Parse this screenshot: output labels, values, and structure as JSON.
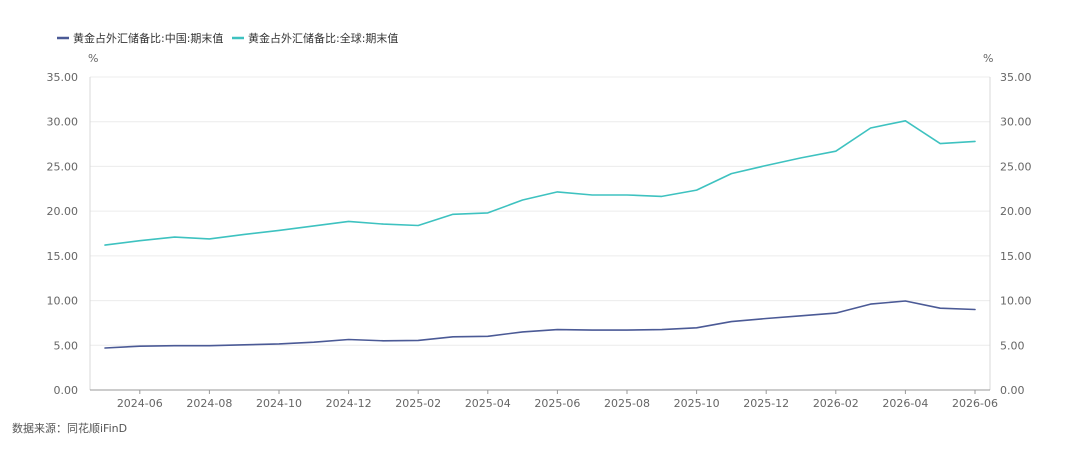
{
  "chart_data": {
    "type": "line",
    "x": [
      "2024-05",
      "2024-06",
      "2024-07",
      "2024-08",
      "2024-09",
      "2024-10",
      "2024-11",
      "2024-12",
      "2025-01",
      "2025-02",
      "2025-03",
      "2025-04",
      "2025-05",
      "2025-06",
      "2025-07",
      "2025-08",
      "2025-09",
      "2025-10",
      "2025-11",
      "2025-12",
      "2026-01",
      "2026-02",
      "2026-03",
      "2026-04",
      "2026-05",
      "2026-06"
    ],
    "x_tick_labels": [
      "2024-06",
      "2024-08",
      "2024-10",
      "2024-12",
      "2025-02",
      "2025-04",
      "2025-06",
      "2025-08",
      "2025-10",
      "2025-12",
      "2026-02",
      "2026-04",
      "2026-06"
    ],
    "series": [
      {
        "name": "黄金占外汇储备比:中国:期末值",
        "color": "#4b5a96",
        "values": [
          4.7,
          4.9,
          4.95,
          4.95,
          5.05,
          5.15,
          5.35,
          5.65,
          5.5,
          5.55,
          5.95,
          6.0,
          6.5,
          6.75,
          6.7,
          6.7,
          6.75,
          6.95,
          7.65,
          8.0,
          8.3,
          8.6,
          9.6,
          9.95,
          9.15,
          9.0
        ]
      },
      {
        "name": "黄金占外汇储备比:全球:期末值",
        "color": "#3ec2c0",
        "values": [
          16.2,
          16.7,
          17.1,
          16.9,
          17.4,
          17.85,
          18.35,
          18.85,
          18.55,
          18.4,
          19.65,
          19.8,
          21.25,
          22.15,
          21.8,
          21.8,
          21.65,
          22.35,
          24.2,
          25.1,
          25.95,
          26.7,
          29.3,
          30.1,
          27.55,
          27.8
        ]
      }
    ],
    "y_ticks": [
      "0.00",
      "5.00",
      "10.00",
      "15.00",
      "20.00",
      "25.00",
      "30.00",
      "35.00"
    ],
    "ylim": [
      0,
      35
    ],
    "y_unit_left": "%",
    "y_unit_right": "%",
    "grid": true,
    "legend_position": "top-left"
  },
  "source": "数据来源：同花顺iFinD"
}
